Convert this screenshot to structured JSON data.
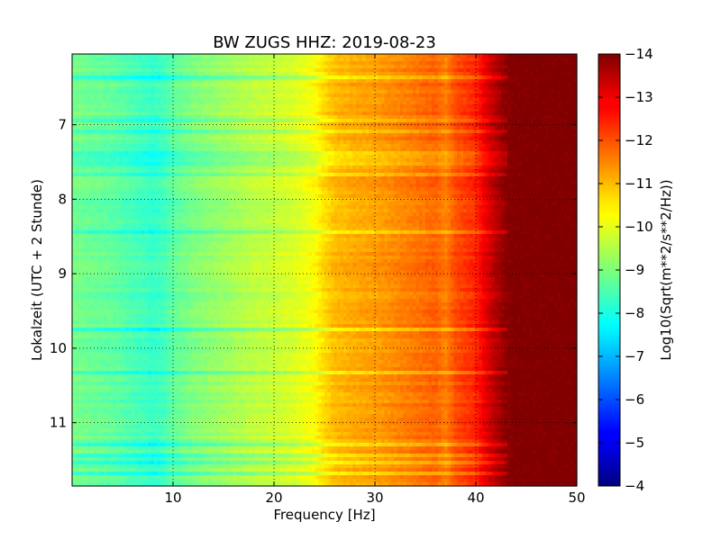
{
  "chart_data": {
    "type": "heatmap",
    "title": "BW ZUGS HHZ: 2019-08-23",
    "xlabel": "Frequency [Hz]",
    "ylabel": "Lokalzeit (UTC + 2 Stunde)",
    "xlim": [
      0,
      50
    ],
    "ylim": [
      11.85,
      6.05
    ],
    "xticks": [
      10,
      20,
      30,
      40,
      50
    ],
    "yticks": [
      7,
      8,
      9,
      10,
      11
    ],
    "grid": true,
    "colormap": "jet",
    "colorbar": {
      "label": "Log10(Sqrt(m**2/s**2/Hz))",
      "range": [
        -14,
        -4
      ],
      "ticks": [
        -4,
        -5,
        -6,
        -7,
        -8,
        -9,
        -10,
        -11,
        -12,
        -13,
        -14
      ]
    },
    "spectrum_profile": {
      "frequency_hz": [
        0,
        2,
        4,
        6,
        8,
        9,
        10,
        12,
        14,
        16,
        18,
        20,
        22,
        24,
        25,
        26,
        28,
        30,
        32,
        34,
        36,
        37,
        38,
        40,
        41,
        42,
        43,
        44,
        50
      ],
      "log10_amplitude": [
        -8.9,
        -8.8,
        -8.7,
        -8.5,
        -8.3,
        -8.4,
        -8.7,
        -9.0,
        -9.2,
        -9.4,
        -9.6,
        -9.7,
        -9.9,
        -10.2,
        -10.6,
        -10.9,
        -11.1,
        -11.2,
        -11.4,
        -11.6,
        -11.8,
        -11.5,
        -12.0,
        -12.4,
        -13.0,
        -13.5,
        -13.9,
        -14.0,
        -14.0
      ]
    }
  }
}
